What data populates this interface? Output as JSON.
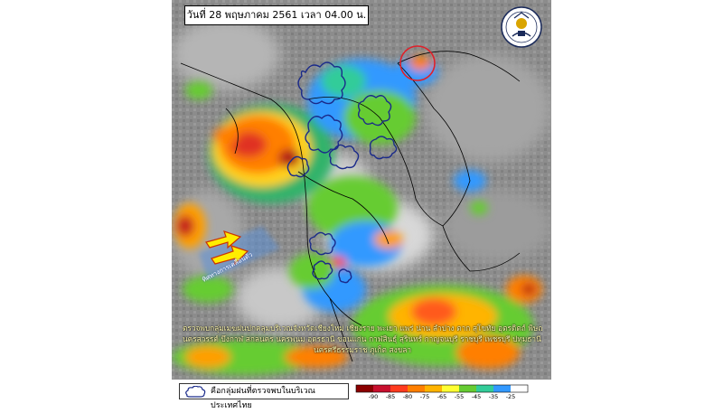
{
  "title": "วันที่ 28 พฤษภาคม 2561 เวลา 04.00 น.",
  "agency_seal": "Thai Meteorological Department seal",
  "description_lines": [
    "ตรวจพบกลุ่มเมฆฝนปกคลุมบริเวณจังหวัดเชียงใหม่ เชียงราย พะเยา แพร่ น่าน ลำปาง ตาก สุโขทัย อุตรดิตถ์ พิษณุโลก พิจิตร",
    "นครสวรรค์ บึงกาฬ สกลนคร นครพนม อุดรธานี ขอนแก่น กาฬสินธุ์ สุรินทร์ กาญจนบุรี ราชบุรี เพชรบุรี ปทุมธานี สุราษฎร์ธานี",
    "นครศรีธรรมราช ภูเก็ต สงขลา"
  ],
  "drift_label": "ทิศทางการเคลื่อนตัว",
  "legend": {
    "cloud_label": "คือกลุ่มฝนที่ตรวจพบในบริเวณประเทศไทย",
    "cloud_icon": "cloud-outline-icon"
  },
  "colorbar": {
    "ticks": [
      "-90",
      "-85",
      "-80",
      "-75",
      "-65",
      "-55",
      "-45",
      "-35",
      "-25"
    ],
    "colors": [
      "#8b0000",
      "#c8102e",
      "#ff3b1f",
      "#ff7f00",
      "#ffb400",
      "#ffff33",
      "#66cc33",
      "#33cc99",
      "#3399ff",
      "#ffffff"
    ]
  },
  "colors": {
    "cloud_outline": "#1a2a8a",
    "highlight_circle": "#e0202a",
    "arrow_fill": "#ffee00",
    "arrow_stroke": "#cc3300"
  }
}
